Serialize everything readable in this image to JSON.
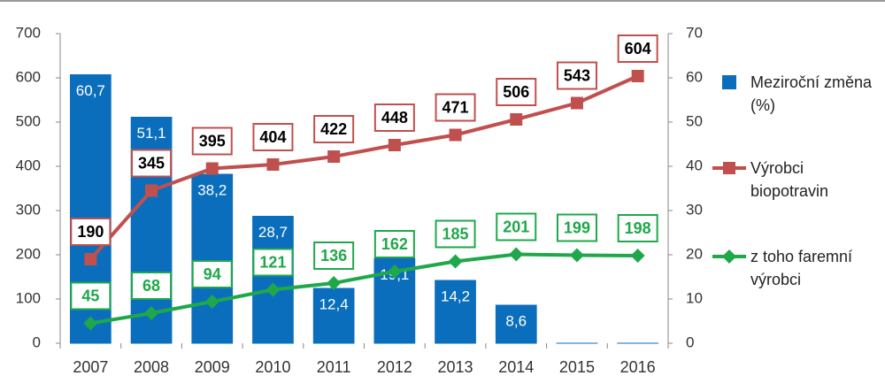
{
  "chart_data": {
    "type": "combo",
    "categories": [
      "2007",
      "2008",
      "2009",
      "2010",
      "2011",
      "2012",
      "2013",
      "2014",
      "2015",
      "2016"
    ],
    "ylim": [
      0,
      700
    ],
    "yticks": [
      0,
      100,
      200,
      300,
      400,
      500,
      600,
      700
    ],
    "y2lim": [
      0,
      70
    ],
    "y2ticks": [
      0,
      10,
      20,
      30,
      40,
      50,
      60,
      70
    ],
    "grid": false,
    "legend": "right",
    "series": [
      {
        "name": "Meziroční změna (%)",
        "type": "bar",
        "axis": "y2",
        "color": "#0a6ebd",
        "values": [
          60.7,
          51.1,
          38.2,
          28.7,
          12.4,
          19.1,
          14.2,
          8.6,
          0,
          0
        ],
        "value_labels": [
          "60,7",
          "51,1",
          "38,2",
          "28,7",
          "12,4",
          "19,1",
          "14,2",
          "8,6",
          null,
          null
        ]
      },
      {
        "name": "Výrobci biopotravin",
        "type": "line",
        "marker": "square",
        "color": "#c0504d",
        "label_color": "#000000",
        "values": [
          190,
          345,
          395,
          404,
          422,
          448,
          471,
          506,
          543,
          604
        ]
      },
      {
        "name": "z toho faremní výrobci",
        "type": "line",
        "marker": "diamond",
        "color": "#1fa84a",
        "label_color": "#1fa84a",
        "values": [
          45,
          68,
          94,
          121,
          136,
          162,
          185,
          201,
          199,
          198
        ]
      }
    ]
  }
}
